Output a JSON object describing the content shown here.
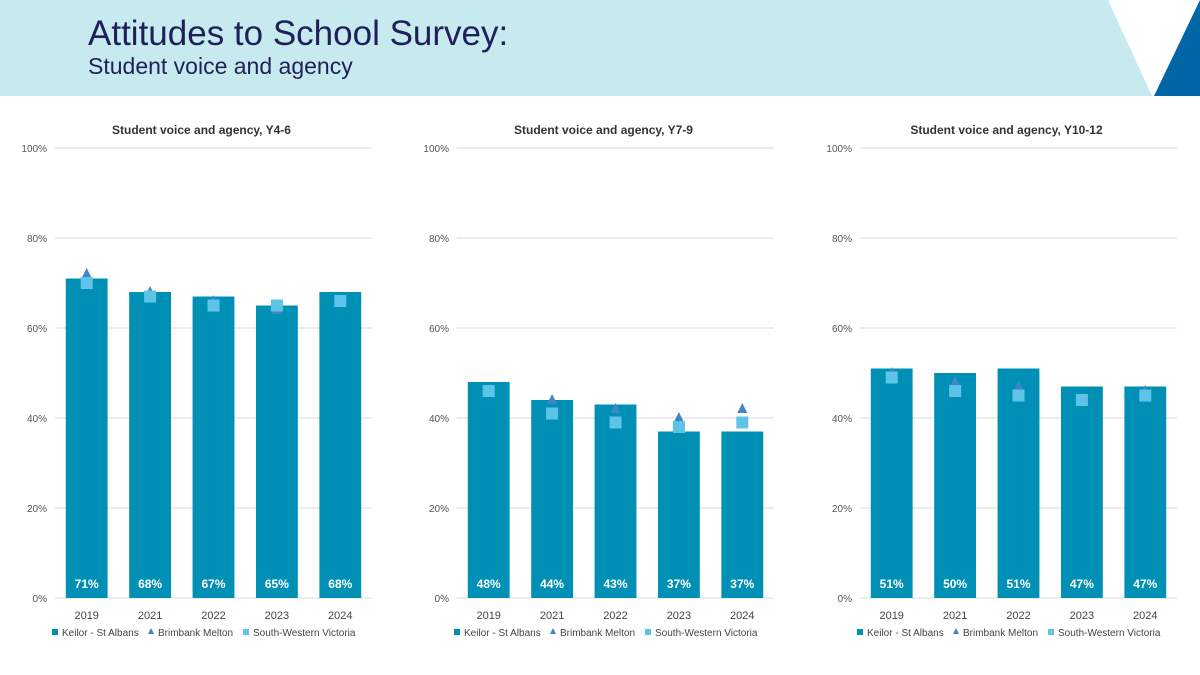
{
  "header": {
    "title": "Attitudes to School Survey:",
    "subtitle": "Student voice and agency"
  },
  "colors": {
    "banner_bg": "#c7eaee",
    "banner_accent_light": "#ffffff",
    "banner_accent_dark": "#0066a6",
    "bar": "#0090b5",
    "triangle_marker": "#3f86c9",
    "square_marker": "#5fc3e8",
    "gridline": "#d9d9d9"
  },
  "chart_data": [
    {
      "type": "bar",
      "title": "Student voice and agency, Y4-6",
      "categories": [
        "2019",
        "2021",
        "2022",
        "2023",
        "2024"
      ],
      "ylim": [
        0,
        100
      ],
      "yticks": [
        "0%",
        "20%",
        "40%",
        "60%",
        "80%",
        "100%"
      ],
      "series": [
        {
          "name": "Keilor - St Albans",
          "kind": "bar",
          "values": [
            71,
            68,
            67,
            65,
            68
          ],
          "labels": [
            "71%",
            "68%",
            "67%",
            "65%",
            "68%"
          ]
        },
        {
          "name": "Brimbank Melton",
          "kind": "triangle",
          "values": [
            72,
            68,
            66,
            64,
            66
          ]
        },
        {
          "name": "South-Western Victoria",
          "kind": "square",
          "values": [
            70,
            67,
            65,
            65,
            66
          ]
        }
      ],
      "legend": "bottom"
    },
    {
      "type": "bar",
      "title": "Student voice and agency, Y7-9",
      "categories": [
        "2019",
        "2021",
        "2022",
        "2023",
        "2024"
      ],
      "ylim": [
        0,
        100
      ],
      "yticks": [
        "0%",
        "20%",
        "40%",
        "60%",
        "80%",
        "100%"
      ],
      "series": [
        {
          "name": "Keilor - St Albans",
          "kind": "bar",
          "values": [
            48,
            44,
            43,
            37,
            37
          ],
          "labels": [
            "48%",
            "44%",
            "43%",
            "37%",
            "37%"
          ]
        },
        {
          "name": "Brimbank Melton",
          "kind": "triangle",
          "values": [
            46,
            44,
            42,
            40,
            42
          ]
        },
        {
          "name": "South-Western Victoria",
          "kind": "square",
          "values": [
            46,
            41,
            39,
            38,
            39
          ]
        }
      ],
      "legend": "bottom"
    },
    {
      "type": "bar",
      "title": "Student voice and agency, Y10-12",
      "categories": [
        "2019",
        "2021",
        "2022",
        "2023",
        "2024"
      ],
      "ylim": [
        0,
        100
      ],
      "yticks": [
        "0%",
        "20%",
        "40%",
        "60%",
        "80%",
        "100%"
      ],
      "series": [
        {
          "name": "Keilor - St Albans",
          "kind": "bar",
          "values": [
            51,
            50,
            51,
            47,
            47
          ],
          "labels": [
            "51%",
            "50%",
            "51%",
            "47%",
            "47%"
          ]
        },
        {
          "name": "Brimbank Melton",
          "kind": "triangle",
          "values": [
            50,
            48,
            47,
            44,
            46
          ]
        },
        {
          "name": "South-Western Victoria",
          "kind": "square",
          "values": [
            49,
            46,
            45,
            44,
            45
          ]
        }
      ],
      "legend": "bottom"
    }
  ]
}
